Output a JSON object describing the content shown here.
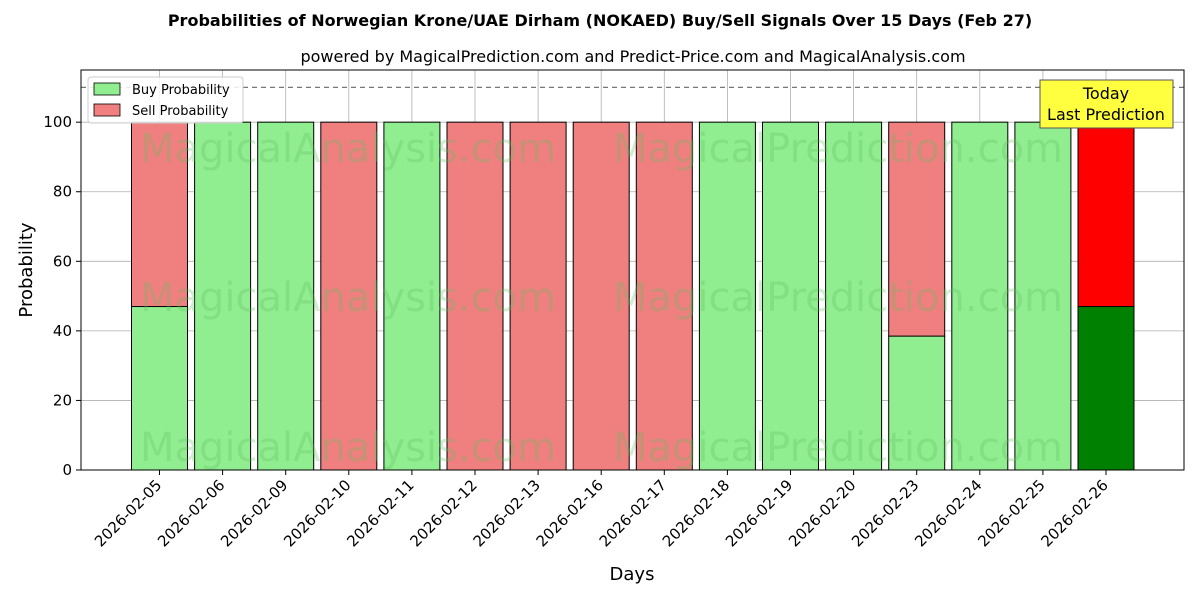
{
  "title": "Probabilities of Norwegian Krone/UAE Dirham (NOKAED) Buy/Sell Signals Over 15 Days (Feb 27)",
  "subtitle": "powered by MagicalPrediction.com and Predict-Price.com and MagicalAnalysis.com",
  "watermarks": [
    "MagicalAnalysis.com",
    "MagicalPrediction.com"
  ],
  "annotation": {
    "line1": "Today",
    "line2": "Last Prediction"
  },
  "colors": {
    "buy": "#90ee90",
    "sell": "#f08080",
    "buy_today": "#008000",
    "sell_today": "#ff0000",
    "annotation_bg": "#ffff40"
  },
  "chart_data": {
    "type": "bar",
    "stacked": true,
    "categories": [
      "2026-02-05",
      "2026-02-06",
      "2026-02-09",
      "2026-02-10",
      "2026-02-11",
      "2026-02-12",
      "2026-02-13",
      "2026-02-16",
      "2026-02-17",
      "2026-02-18",
      "2026-02-19",
      "2026-02-20",
      "2026-02-23",
      "2026-02-24",
      "2026-02-25",
      "2026-02-26"
    ],
    "series": [
      {
        "name": "Buy Probability",
        "values": [
          47,
          100,
          100,
          0,
          100,
          0,
          0,
          0,
          0,
          100,
          100,
          100,
          38.5,
          100,
          100,
          47
        ]
      },
      {
        "name": "Sell Probability",
        "values": [
          53,
          0,
          0,
          100,
          0,
          100,
          100,
          100,
          100,
          0,
          0,
          0,
          61.5,
          0,
          0,
          53
        ]
      }
    ],
    "xlabel": "Days",
    "ylabel": "Probability",
    "ylim": [
      0,
      115
    ],
    "yticks": [
      0,
      20,
      40,
      60,
      80,
      100
    ],
    "reference_line": 110,
    "grid": true,
    "legend_position": "top-left",
    "highlight_last": true
  }
}
